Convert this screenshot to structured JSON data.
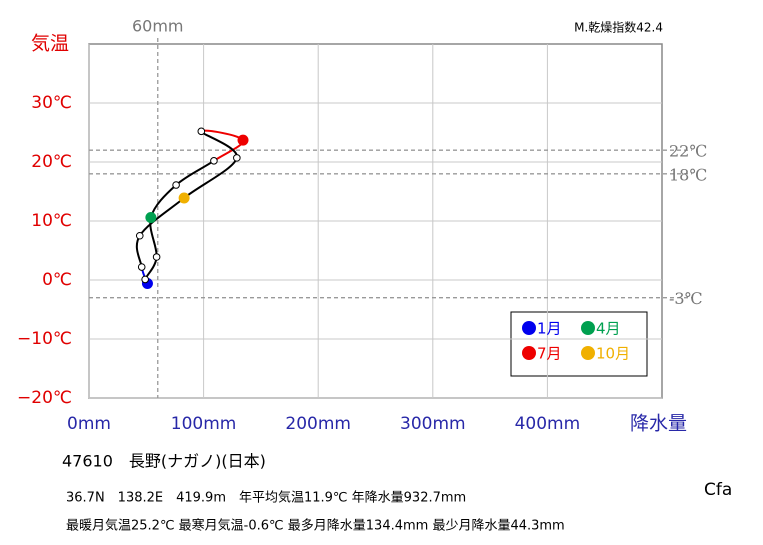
{
  "chart_data": {
    "type": "climograph",
    "x_label": "降水量",
    "y_label": "気温",
    "categories": [
      "1月",
      null,
      null,
      "4月",
      null,
      null,
      "7月",
      null,
      null,
      "10月",
      null,
      null
    ],
    "x": [
      51,
      49,
      59,
      54,
      76,
      109,
      134.4,
      98,
      129,
      83,
      44.3,
      46
    ],
    "values": [
      -0.6,
      0.1,
      3.9,
      10.6,
      16.1,
      20.2,
      23.7,
      25.2,
      20.7,
      13.9,
      7.5,
      2.2
    ],
    "colors": [
      "#0000ee",
      "#ffffff",
      "#ffffff",
      "#00a050",
      "#ffffff",
      "#ffffff",
      "#ee0000",
      "#ffffff",
      "#ffffff",
      "#f0b000",
      "#ffffff",
      "#ffffff"
    ],
    "line_colors": [
      "#0000ee",
      "#000000",
      "#000000",
      "#000000",
      "#000000",
      "#ee0000",
      "#ee0000",
      "#000000",
      "#000000",
      "#000000",
      "#000000",
      "#0000ee"
    ],
    "xlim": [
      0,
      500
    ],
    "ylim": [
      -20,
      40
    ],
    "xticks": [
      {
        "value": 0,
        "label": "0mm"
      },
      {
        "value": 100,
        "label": "100mm"
      },
      {
        "value": 200,
        "label": "200mm"
      },
      {
        "value": 300,
        "label": "300mm"
      },
      {
        "value": 400,
        "label": "400mm"
      }
    ],
    "yticks": [
      {
        "value": -20,
        "label": "−20℃"
      },
      {
        "value": -10,
        "label": "−10℃"
      },
      {
        "value": 0,
        "label": "0℃"
      },
      {
        "value": 10,
        "label": "10℃"
      },
      {
        "value": 20,
        "label": "20℃"
      },
      {
        "value": 30,
        "label": "30℃"
      }
    ],
    "grid": true,
    "reference_lines": [
      {
        "value": 22,
        "label": "22℃"
      },
      {
        "value": 18,
        "label": "18℃"
      },
      {
        "value": -3,
        "label": "-3℃"
      }
    ],
    "x_reference_lines": [
      {
        "value": 60,
        "label": "60mm"
      }
    ],
    "dryness_index": "M.乾燥指数42.4",
    "station": "47610　長野(ナガノ)(日本)",
    "info": [
      "36.7N　138.2E　419.9m　年平均気温11.9℃ 年降水量932.7mm",
      "最暖月気温25.2℃ 最寒月気温-0.6℃ 最多月降水量134.4mm 最少月降水量44.3mm"
    ],
    "climate": "Cfa"
  }
}
